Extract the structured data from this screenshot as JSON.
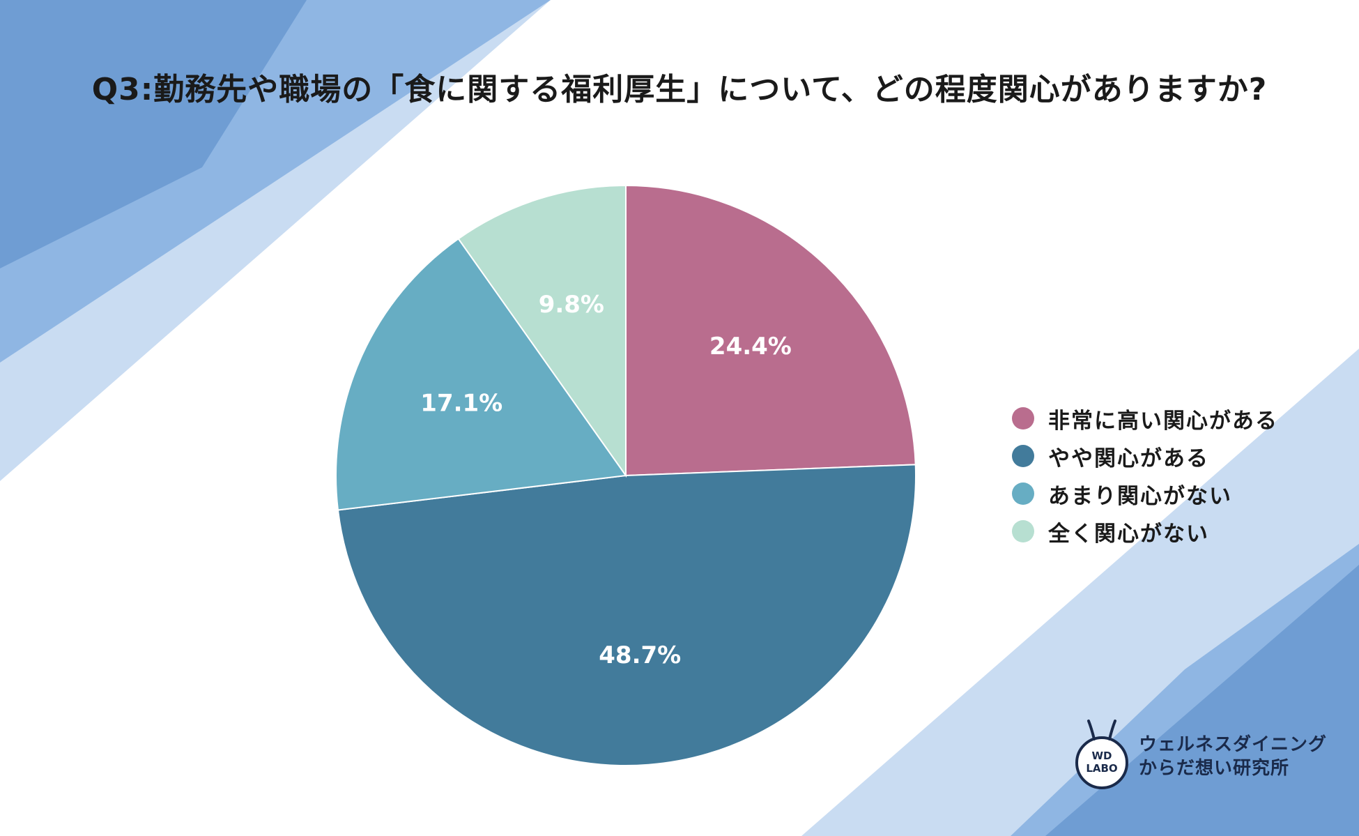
{
  "title": "Q3:勤務先や職場の「食に関する福利厚生」について、どの程度関心がありますか?",
  "chart_data": {
    "type": "pie",
    "start": "12 o'clock, clockwise",
    "slices": [
      {
        "label": "非常に高い関心がある",
        "value": 24.4,
        "display": "24.4%",
        "color": "#b96d8e"
      },
      {
        "label": "やや関心がある",
        "value": 48.7,
        "display": "48.7%",
        "color": "#427b9b"
      },
      {
        "label": "あまり関心がない",
        "value": 17.1,
        "display": "17.1%",
        "color": "#67adc3"
      },
      {
        "label": "全く関心がない",
        "value": 9.8,
        "display": "9.8%",
        "color": "#b7dfd1"
      }
    ],
    "legend_position": "right"
  },
  "logo": {
    "mark_line1": "WD",
    "mark_line2": "LABO",
    "line1": "ウェルネスダイニング",
    "line2": "からだ想い研究所"
  },
  "colors": {
    "bg_blue_dark": "#6f9dd3",
    "bg_blue_mid": "#8fb6e3",
    "bg_blue_light": "#c9dcf2"
  }
}
